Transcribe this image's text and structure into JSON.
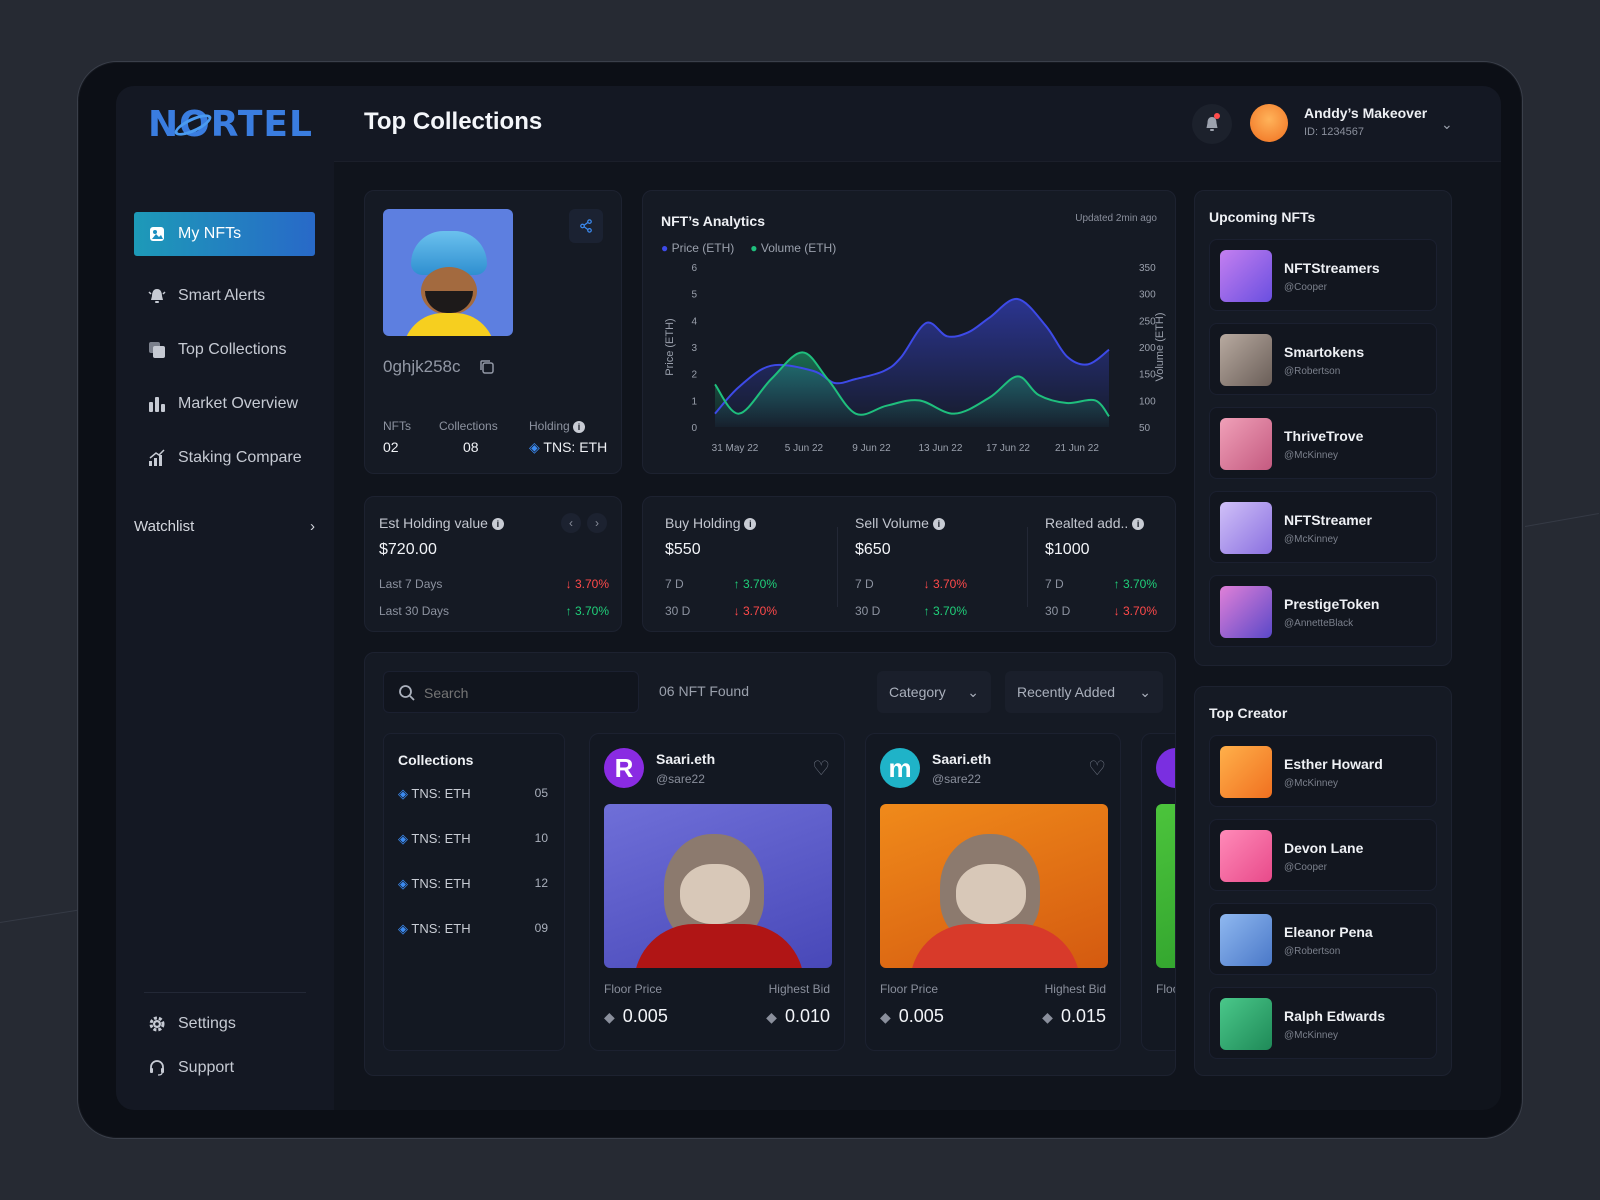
{
  "app": {
    "logo": "NORTEL",
    "page_title": "Top Collections"
  },
  "user": {
    "name": "Anddy’s Makeover",
    "id": "ID: 1234567"
  },
  "sidebar": {
    "items": [
      {
        "label": "My NFTs",
        "icon": "nft-icon",
        "active": true
      },
      {
        "label": "Smart Alerts",
        "icon": "alert-icon"
      },
      {
        "label": "Top Collections",
        "icon": "collections-icon"
      },
      {
        "label": "Market Overview",
        "icon": "bar-chart-icon"
      },
      {
        "label": "Staking Compare",
        "icon": "staking-icon"
      }
    ],
    "watchlist": "Watchlist",
    "settings": "Settings",
    "support": "Support"
  },
  "profile": {
    "code": "0ghjk258c",
    "nfts_label": "NFTs",
    "nfts_value": "02",
    "collections_label": "Collections",
    "collections_value": "08",
    "holding_label": "Holding",
    "holding_value": "TNS: ETH"
  },
  "analytics": {
    "title": "NFT’s Analytics",
    "updated": "Updated 2min ago",
    "legend_price": "Price (ETH)",
    "legend_volume": "Volume (ETH)",
    "colors": {
      "price": "#3d4ae8",
      "volume": "#1fbf7d"
    }
  },
  "chart_data": {
    "type": "area",
    "title": "NFT’s Analytics",
    "x": [
      "31 May 22",
      "5 Jun 22",
      "9 Jun 22",
      "13 Jun 22",
      "17 Jun 22",
      "21 Jun 22"
    ],
    "ylabel": "Price (ETH)",
    "y2label": "Volume (ETH)",
    "ylim": [
      0,
      6
    ],
    "y2lim": [
      50,
      350
    ],
    "yticks": [
      "0",
      "1",
      "2",
      "3",
      "4",
      "5",
      "6"
    ],
    "y2ticks": [
      "50",
      "100",
      "150",
      "200",
      "250",
      "300",
      "350"
    ],
    "series": [
      {
        "name": "Price (ETH)",
        "axis": "left",
        "x": [
          30,
          31.7,
          34,
          37,
          38.5,
          40,
          42,
          43.2,
          45,
          46.5,
          48,
          49.5,
          51.5,
          53.5,
          55,
          56.5,
          58
        ],
        "values": [
          0.5,
          1.5,
          2.3,
          2.1,
          1.65,
          1.8,
          2.1,
          2.6,
          3.9,
          3.4,
          3.55,
          4.1,
          4.8,
          3.8,
          2.65,
          2.35,
          2.9
        ]
      },
      {
        "name": "Volume (ETH)",
        "axis": "right",
        "x": [
          30,
          31.7,
          34,
          36.2,
          38,
          40,
          42.2,
          44.5,
          47,
          49.5,
          51.5,
          53,
          55,
          57,
          58
        ],
        "values": [
          130,
          75,
          140,
          190,
          140,
          75,
          90,
          100,
          75,
          105,
          145,
          110,
          95,
          100,
          70
        ]
      }
    ]
  },
  "est_holding": {
    "title": "Est Holding value",
    "value": "$720.00",
    "rows": [
      {
        "label": "Last 7 Days",
        "change": "↓ 3.70%",
        "dir": "down"
      },
      {
        "label": "Last 30 Days",
        "change": "↑ 3.70%",
        "dir": "up"
      }
    ]
  },
  "stats": [
    {
      "title": "Buy Holding",
      "value": "$550",
      "rows": [
        {
          "label": "7 D",
          "change": "↑ 3.70%",
          "dir": "up"
        },
        {
          "label": "30 D",
          "change": "↓ 3.70%",
          "dir": "down"
        }
      ]
    },
    {
      "title": "Sell Volume",
      "value": "$650",
      "rows": [
        {
          "label": "7 D",
          "change": "↓ 3.70%",
          "dir": "down"
        },
        {
          "label": "30 D",
          "change": "↑ 3.70%",
          "dir": "up"
        }
      ]
    },
    {
      "title": "Realted add..",
      "value": "$1000",
      "rows": [
        {
          "label": "7 D",
          "change": "↑ 3.70%",
          "dir": "up"
        },
        {
          "label": "30 D",
          "change": "↓ 3.70%",
          "dir": "down"
        }
      ]
    }
  ],
  "search": {
    "placeholder": "Search",
    "found": "06 NFT Found",
    "category": "Category",
    "sort": "Recently Added"
  },
  "collections": {
    "title": "Collections",
    "items": [
      {
        "name": "TNS: ETH",
        "count": "05"
      },
      {
        "name": "TNS: ETH",
        "count": "10"
      },
      {
        "name": "TNS: ETH",
        "count": "12"
      },
      {
        "name": "TNS: ETH",
        "count": "09"
      }
    ]
  },
  "nft_cards": [
    {
      "name": "Saari.eth",
      "handle": "@sare22",
      "avatar_letter": "R",
      "floor_label": "Floor Price",
      "floor": "0.005",
      "bid_label": "Highest Bid",
      "bid": "0.010"
    },
    {
      "name": "Saari.eth",
      "handle": "@sare22",
      "avatar_letter": "m",
      "floor_label": "Floor Price",
      "floor": "0.005",
      "bid_label": "Highest Bid",
      "bid": "0.015"
    },
    {
      "floor_label": "Floor"
    }
  ],
  "upcoming": {
    "title": "Upcoming NFTs",
    "items": [
      {
        "name": "NFTStreamers",
        "handle": "@Cooper"
      },
      {
        "name": "Smartokens",
        "handle": "@Robertson"
      },
      {
        "name": "ThriveTrove",
        "handle": "@McKinney"
      },
      {
        "name": "NFTStreamer",
        "handle": "@McKinney"
      },
      {
        "name": "PrestigeToken",
        "handle": "@AnnetteBlack"
      }
    ]
  },
  "creators": {
    "title": "Top Creator",
    "items": [
      {
        "name": "Esther Howard",
        "handle": "@McKinney"
      },
      {
        "name": "Devon Lane",
        "handle": "@Cooper"
      },
      {
        "name": "Eleanor Pena",
        "handle": "@Robertson"
      },
      {
        "name": "Ralph Edwards",
        "handle": "@McKinney"
      }
    ]
  }
}
